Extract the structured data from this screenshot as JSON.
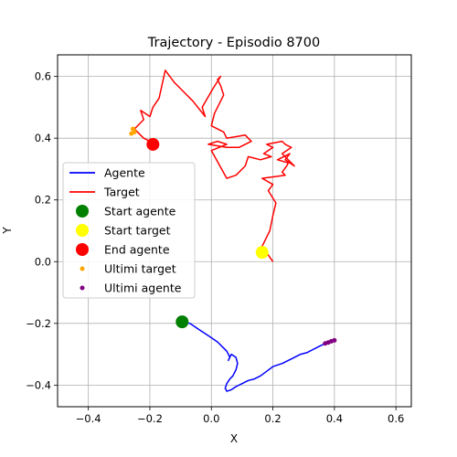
{
  "chart_data": {
    "type": "line",
    "title": "Trajectory - Episodio 8700",
    "xlabel": "X",
    "ylabel": "Y",
    "xlim": [
      -0.5,
      0.65
    ],
    "ylim": [
      -0.47,
      0.67
    ],
    "xticks": [
      -0.4,
      -0.2,
      0.0,
      0.2,
      0.4,
      0.6
    ],
    "yticks": [
      -0.4,
      -0.2,
      0.0,
      0.2,
      0.4,
      0.6
    ],
    "xtick_labels": [
      "−0.4",
      "−0.2",
      "0.0",
      "0.2",
      "0.4",
      "0.6"
    ],
    "ytick_labels": [
      "−0.4",
      "−0.2",
      "0.0",
      "0.2",
      "0.4",
      "0.6"
    ],
    "grid": true,
    "legend_placement": "center-left",
    "legend": [
      {
        "label": "Agente",
        "kind": "line",
        "color": "#0000ff"
      },
      {
        "label": "Target",
        "kind": "line",
        "color": "#ff0000"
      },
      {
        "label": "Start agente",
        "kind": "big-dot",
        "color": "#008000"
      },
      {
        "label": "Start target",
        "kind": "big-dot",
        "color": "#ffff00"
      },
      {
        "label": "End agente",
        "kind": "big-dot",
        "color": "#ff0000"
      },
      {
        "label": "Ultimi target",
        "kind": "small-dot",
        "color": "#ffa500"
      },
      {
        "label": "Ultimi agente",
        "kind": "small-dot",
        "color": "#800080"
      }
    ],
    "series": [
      {
        "name": "Agente",
        "color": "#0000ff",
        "x": [
          -0.095,
          -0.07,
          -0.04,
          -0.01,
          0.02,
          0.04,
          0.05,
          0.055,
          0.06,
          0.055,
          0.065,
          0.08,
          0.085,
          0.08,
          0.07,
          0.06,
          0.05,
          0.045,
          0.05,
          0.065,
          0.08,
          0.1,
          0.12,
          0.14,
          0.16,
          0.18,
          0.2,
          0.23,
          0.26,
          0.29,
          0.31,
          0.33,
          0.35,
          0.37,
          0.385,
          0.4
        ],
        "y": [
          -0.195,
          -0.2,
          -0.22,
          -0.24,
          -0.26,
          -0.28,
          -0.29,
          -0.3,
          -0.31,
          -0.32,
          -0.3,
          -0.31,
          -0.33,
          -0.35,
          -0.37,
          -0.38,
          -0.395,
          -0.41,
          -0.42,
          -0.415,
          -0.405,
          -0.395,
          -0.385,
          -0.38,
          -0.37,
          -0.355,
          -0.34,
          -0.33,
          -0.315,
          -0.3,
          -0.295,
          -0.285,
          -0.275,
          -0.265,
          -0.26,
          -0.255
        ]
      },
      {
        "name": "Target",
        "color": "#ff0000",
        "x": [
          0.2,
          0.165,
          0.19,
          0.2,
          0.21,
          0.185,
          0.2,
          0.165,
          0.24,
          0.23,
          0.245,
          0.25,
          0.215,
          0.255,
          0.24,
          0.27,
          0.23,
          0.26,
          0.24,
          0.23,
          0.18,
          0.2,
          0.17,
          0.195,
          0.16,
          0.12,
          0.11,
          0.08,
          0.05,
          0.0,
          0.05,
          0.02,
          -0.01,
          0.05,
          0.09,
          0.13,
          0.11,
          0.05,
          0.04,
          0.0,
          0.01,
          0.04,
          0.03,
          0.02,
          0.03,
          0.005,
          -0.03,
          -0.02,
          -0.06,
          -0.09,
          -0.12,
          -0.15,
          -0.17,
          -0.19,
          -0.2,
          -0.23,
          -0.22,
          -0.25,
          -0.22,
          -0.2,
          -0.19
        ],
        "y": [
          0.0,
          0.05,
          0.1,
          0.15,
          0.19,
          0.23,
          0.25,
          0.27,
          0.28,
          0.29,
          0.31,
          0.32,
          0.33,
          0.35,
          0.33,
          0.31,
          0.35,
          0.37,
          0.38,
          0.39,
          0.38,
          0.37,
          0.35,
          0.34,
          0.33,
          0.34,
          0.31,
          0.28,
          0.27,
          0.36,
          0.38,
          0.39,
          0.38,
          0.37,
          0.37,
          0.39,
          0.41,
          0.4,
          0.42,
          0.44,
          0.48,
          0.54,
          0.57,
          0.59,
          0.6,
          0.56,
          0.5,
          0.47,
          0.52,
          0.55,
          0.58,
          0.62,
          0.53,
          0.5,
          0.47,
          0.49,
          0.46,
          0.43,
          0.4,
          0.39,
          0.38
        ]
      }
    ],
    "markers": {
      "start_agente": {
        "x": -0.095,
        "y": -0.195,
        "color": "#008000"
      },
      "start_target": {
        "x": 0.165,
        "y": 0.03,
        "color": "#ffff00"
      },
      "end_agente": {
        "x": -0.19,
        "y": 0.38,
        "color": "#ff0000"
      },
      "ultimi_target": {
        "color": "#ffa500",
        "x": [
          -0.25,
          -0.255,
          -0.26
        ],
        "y": [
          0.42,
          0.43,
          0.415
        ]
      },
      "ultimi_agente": {
        "color": "#800080",
        "x": [
          0.37,
          0.38,
          0.39,
          0.4
        ],
        "y": [
          -0.265,
          -0.262,
          -0.258,
          -0.255
        ]
      }
    }
  }
}
